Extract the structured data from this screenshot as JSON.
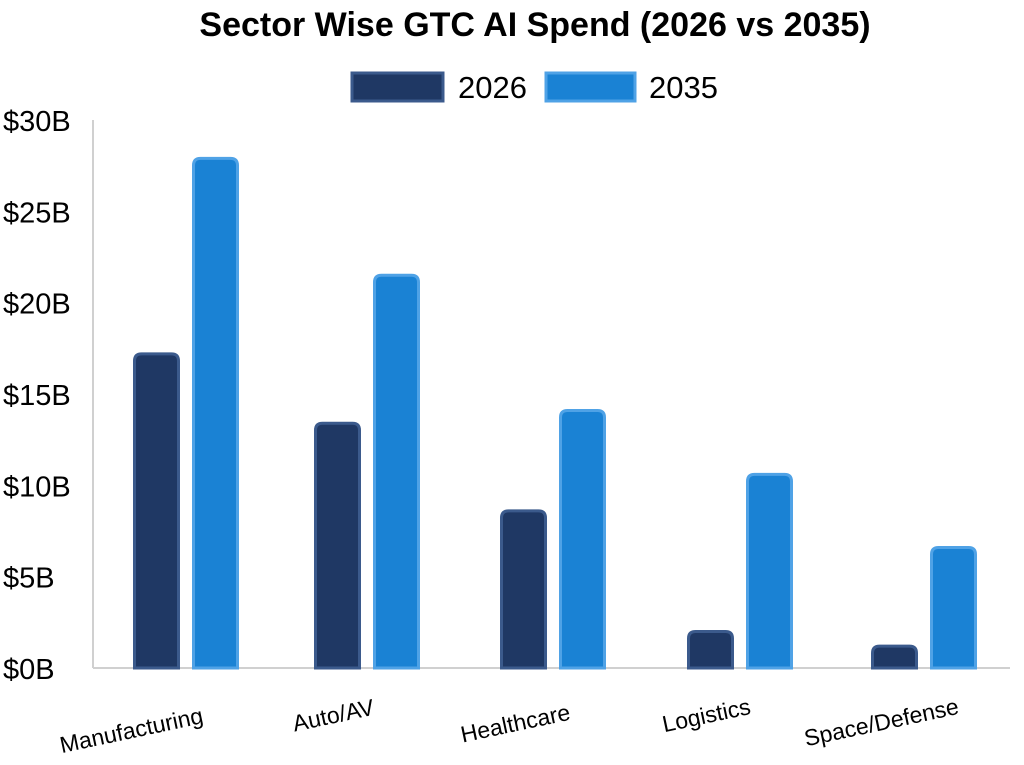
{
  "chart_data": {
    "type": "bar",
    "title": "Sector Wise GTC AI Spend (2026 vs 2035)",
    "xlabel": "",
    "ylabel": "",
    "categories": [
      "Manufacturing",
      "Auto/AV",
      "Healthcare",
      "Logistics",
      "Space/Defense"
    ],
    "series": [
      {
        "name": "2026",
        "color": "#1f3864",
        "values": [
          17.2,
          13.4,
          8.6,
          2.0,
          1.2
        ]
      },
      {
        "name": "2035",
        "color": "#1a82d4",
        "values": [
          27.9,
          21.5,
          14.1,
          10.6,
          6.6
        ]
      }
    ],
    "ylim": [
      0,
      30
    ],
    "yticks": [
      0,
      5,
      10,
      15,
      20,
      25,
      30
    ],
    "ytick_labels": [
      "$0B",
      "$5B",
      "$10B",
      "$15B",
      "$20B",
      "$25B",
      "$30B"
    ],
    "grid": false,
    "legend_position": "top-center"
  }
}
